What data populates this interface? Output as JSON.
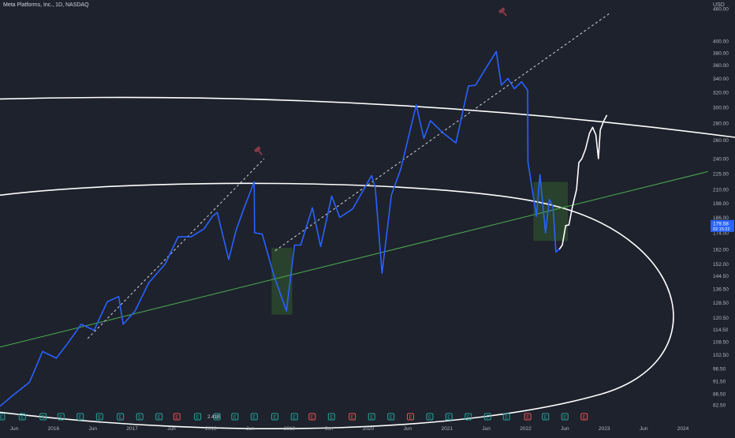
{
  "header": {
    "symbol_title": "Meta Platforms, Inc., 1D, NASDAQ",
    "currency": "USD"
  },
  "price_tag": {
    "value": "179.58",
    "countdown": "02:15:22",
    "color": "#2962ff"
  },
  "dividend_label": "2.41B",
  "colors": {
    "background": "#1e222d",
    "price_line_history": "#2962ff",
    "price_line_recent": "#ffffff",
    "trendline": "#4caf50",
    "ellipse": "#ffffff",
    "highlight_box": "#2e4d2e",
    "earnings_positive": "#26a69a",
    "earnings_negative": "#ef5350",
    "gavel_icon": "#8a3a48"
  },
  "icons": [
    "gavel-icon",
    "earnings-marker-icon"
  ],
  "chart_data": {
    "type": "line",
    "scale": "log",
    "ylim": [
      80,
      460
    ],
    "y_ticks": [
      460,
      400,
      380,
      360,
      340,
      320,
      300,
      280,
      260,
      240,
      225,
      210,
      198,
      186,
      174,
      162,
      152,
      144.5,
      136.5,
      128.5,
      120.5,
      114.5,
      108.5,
      102.5,
      96.5,
      91.5,
      86.5,
      82.5
    ],
    "x_ticks": [
      "Jun",
      "2016",
      "Jun",
      "2017",
      "Jun",
      "2018",
      "Jun",
      "2019",
      "Jun",
      "2020",
      "Jun",
      "2021",
      "Jun",
      "2022",
      "Jun",
      "2023",
      "Jun",
      "2024"
    ],
    "x_range": [
      "2015-04-15",
      "2024-06-01"
    ],
    "grid": false,
    "series": [
      {
        "style": "price-history",
        "color": "#2962ff",
        "points": [
          [
            "2015-04-15",
            82
          ],
          [
            "2015-06-15",
            86
          ],
          [
            "2015-09-01",
            91
          ],
          [
            "2015-11-01",
            104
          ],
          [
            "2016-01-05",
            101
          ],
          [
            "2016-03-01",
            108
          ],
          [
            "2016-05-01",
            117
          ],
          [
            "2016-07-01",
            114
          ],
          [
            "2016-09-01",
            129
          ],
          [
            "2016-10-25",
            132
          ],
          [
            "2016-11-15",
            117
          ],
          [
            "2017-01-10",
            124
          ],
          [
            "2017-03-15",
            140
          ],
          [
            "2017-06-01",
            152
          ],
          [
            "2017-08-01",
            171
          ],
          [
            "2017-10-01",
            171
          ],
          [
            "2017-12-01",
            177
          ],
          [
            "2018-01-10",
            187
          ],
          [
            "2018-02-01",
            190
          ],
          [
            "2018-03-27",
            155
          ],
          [
            "2018-05-01",
            176
          ],
          [
            "2018-06-10",
            195
          ],
          [
            "2018-07-25",
            217
          ],
          [
            "2018-07-27",
            174
          ],
          [
            "2018-09-01",
            173
          ],
          [
            "2018-10-25",
            145
          ],
          [
            "2018-12-24",
            124
          ],
          [
            "2019-01-31",
            165
          ],
          [
            "2019-03-01",
            165
          ],
          [
            "2019-04-25",
            194
          ],
          [
            "2019-06-03",
            164
          ],
          [
            "2019-07-25",
            204
          ],
          [
            "2019-09-01",
            186
          ],
          [
            "2019-11-01",
            193
          ],
          [
            "2020-01-29",
            223
          ],
          [
            "2020-02-15",
            212
          ],
          [
            "2020-03-18",
            146
          ],
          [
            "2020-05-01",
            205
          ],
          [
            "2020-06-15",
            230
          ],
          [
            "2020-08-26",
            303
          ],
          [
            "2020-10-01",
            262
          ],
          [
            "2020-11-01",
            283
          ],
          [
            "2021-01-01",
            268
          ],
          [
            "2021-03-01",
            257
          ],
          [
            "2021-04-29",
            329
          ],
          [
            "2021-06-01",
            330
          ],
          [
            "2021-07-29",
            360
          ],
          [
            "2021-09-07",
            382
          ],
          [
            "2021-10-01",
            330
          ],
          [
            "2021-11-01",
            340
          ],
          [
            "2021-12-01",
            325
          ],
          [
            "2022-01-04",
            335
          ],
          [
            "2022-02-02",
            323
          ],
          [
            "2022-02-03",
            237
          ],
          [
            "2022-03-15",
            187
          ],
          [
            "2022-04-01",
            224
          ],
          [
            "2022-04-27",
            174
          ],
          [
            "2022-05-15",
            201
          ],
          [
            "2022-06-01",
            195
          ],
          [
            "2022-06-15",
            160
          ],
          [
            "2022-06-30",
            162
          ]
        ]
      },
      {
        "style": "price-recent",
        "color": "#ffffff",
        "points": [
          [
            "2022-07-01",
            162
          ],
          [
            "2022-07-15",
            165
          ],
          [
            "2022-07-31",
            179.58
          ],
          [
            "2022-08-15",
            180
          ],
          [
            "2022-09-01",
            195
          ],
          [
            "2022-09-20",
            210
          ],
          [
            "2022-10-01",
            236
          ],
          [
            "2022-10-15",
            240
          ],
          [
            "2022-11-01",
            250
          ],
          [
            "2022-11-20",
            268
          ],
          [
            "2022-12-05",
            275
          ],
          [
            "2022-12-20",
            266
          ],
          [
            "2023-01-01",
            240
          ],
          [
            "2023-01-10",
            272
          ],
          [
            "2023-01-25",
            282
          ],
          [
            "2023-02-10",
            290
          ]
        ]
      }
    ],
    "trendline_dotted": [
      [
        "2016-06-01",
        110
      ],
      [
        "2018-09-10",
        240
      ]
    ],
    "trendline_dotted_2": [
      [
        "2018-11-01",
        161
      ],
      [
        "2023-02-20",
        450
      ]
    ],
    "trendline_green": [
      [
        "2015-04-15",
        106
      ],
      [
        "2024-06-01",
        227
      ]
    ],
    "highlight_zones": [
      {
        "x": [
          "2018-10-15",
          "2019-01-20"
        ],
        "y": [
          122,
          163
        ]
      },
      {
        "x": [
          "2022-03-01",
          "2022-08-10"
        ],
        "y": [
          168,
          217
        ]
      }
    ],
    "earnings_markers": [
      {
        "date": "2015-04-22",
        "type": "positive"
      },
      {
        "date": "2015-07-29",
        "type": "positive"
      },
      {
        "date": "2015-11-04",
        "type": "positive"
      },
      {
        "date": "2016-01-27",
        "type": "positive"
      },
      {
        "date": "2016-04-27",
        "type": "positive"
      },
      {
        "date": "2016-07-27",
        "type": "positive"
      },
      {
        "date": "2016-11-02",
        "type": "positive"
      },
      {
        "date": "2017-02-01",
        "type": "positive"
      },
      {
        "date": "2017-05-03",
        "type": "positive"
      },
      {
        "date": "2017-07-26",
        "type": "negative"
      },
      {
        "date": "2017-11-01",
        "type": "positive"
      },
      {
        "date": "2018-01-31",
        "type": "positive"
      },
      {
        "date": "2018-04-25",
        "type": "positive"
      },
      {
        "date": "2018-07-25",
        "type": "positive"
      },
      {
        "date": "2018-10-30",
        "type": "positive"
      },
      {
        "date": "2019-01-30",
        "type": "positive"
      },
      {
        "date": "2019-04-24",
        "type": "negative"
      },
      {
        "date": "2019-07-24",
        "type": "positive"
      },
      {
        "date": "2019-10-30",
        "type": "negative"
      },
      {
        "date": "2020-01-29",
        "type": "positive"
      },
      {
        "date": "2020-04-29",
        "type": "positive"
      },
      {
        "date": "2020-07-30",
        "type": "negative"
      },
      {
        "date": "2020-10-29",
        "type": "positive"
      },
      {
        "date": "2021-01-27",
        "type": "positive"
      },
      {
        "date": "2021-04-28",
        "type": "positive"
      },
      {
        "date": "2021-07-28",
        "type": "positive"
      },
      {
        "date": "2021-10-25",
        "type": "positive"
      },
      {
        "date": "2022-02-02",
        "type": "negative"
      },
      {
        "date": "2022-04-27",
        "type": "positive"
      },
      {
        "date": "2022-07-27",
        "type": "positive"
      },
      {
        "date": "2022-10-26",
        "type": "negative"
      }
    ]
  }
}
